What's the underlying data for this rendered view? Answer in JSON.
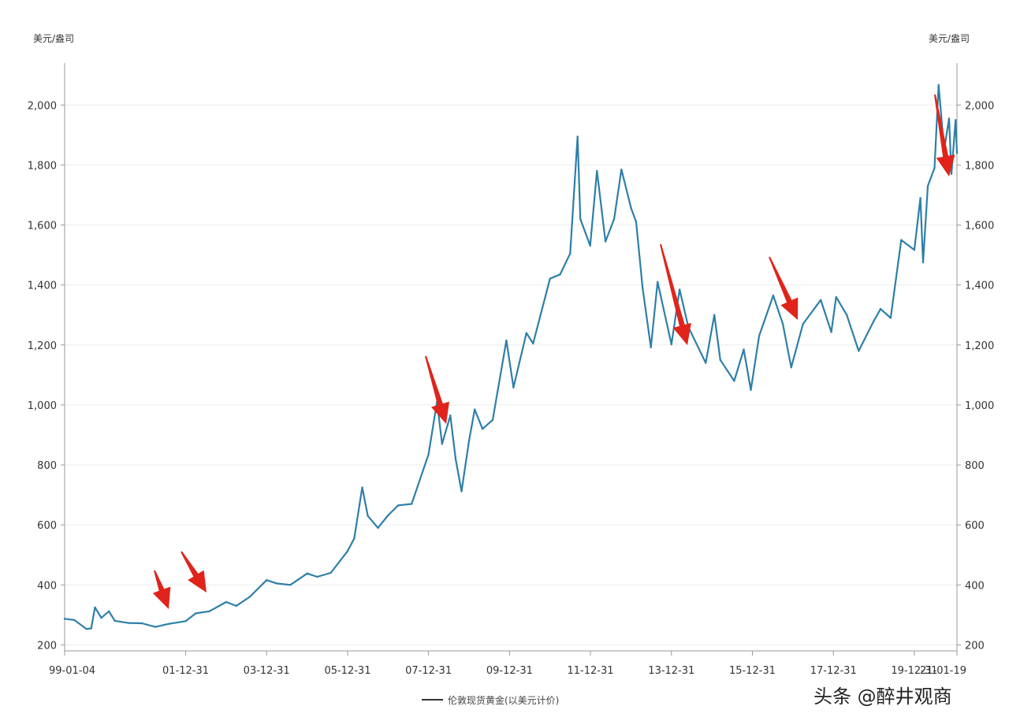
{
  "chart_data": {
    "type": "line",
    "y_unit_left": "美元/盎司",
    "y_unit_right": "美元/盎司",
    "ylim": [
      180,
      2140
    ],
    "y_ticks": [
      200,
      400,
      600,
      800,
      1000,
      1200,
      1400,
      1600,
      1800,
      2000
    ],
    "y_tick_labels": [
      "200",
      "400",
      "600",
      "800",
      "1,000",
      "1,200",
      "1,400",
      "1,600",
      "1,800",
      "2,000"
    ],
    "xlim": [
      "1999-01-04",
      "2021-01-19"
    ],
    "x_ticks": [
      "1999-01-04",
      "2001-12-31",
      "2003-12-31",
      "2005-12-31",
      "2007-12-31",
      "2009-12-31",
      "2011-12-31",
      "2013-12-31",
      "2015-12-31",
      "2017-12-31",
      "2019-12-31",
      "2021-01-19"
    ],
    "x_tick_labels": [
      "99-01-04",
      "01-12-31",
      "03-12-31",
      "05-12-31",
      "07-12-31",
      "09-12-31",
      "11-12-31",
      "13-12-31",
      "15-12-31",
      "17-12-31",
      "19-12-31",
      "21-01-19"
    ],
    "grid": "horizontal",
    "legend_position": "bottom",
    "series": [
      {
        "name": "伦敦现货黄金(以美元计价)",
        "color": "#2e7fa8",
        "x": [
          "1999-01-04",
          "1999-04-01",
          "1999-07-20",
          "1999-09-01",
          "1999-10-05",
          "1999-12-01",
          "2000-02-08",
          "2000-04-01",
          "2000-08-01",
          "2000-12-01",
          "2001-04-01",
          "2001-08-01",
          "2001-12-31",
          "2002-04-01",
          "2002-08-01",
          "2002-12-31",
          "2003-04-01",
          "2003-08-01",
          "2003-12-31",
          "2004-04-01",
          "2004-08-01",
          "2004-12-31",
          "2005-04-01",
          "2005-08-01",
          "2005-12-31",
          "2006-03-01",
          "2006-05-12",
          "2006-07-01",
          "2006-10-01",
          "2006-12-31",
          "2007-04-01",
          "2007-08-01",
          "2007-12-31",
          "2008-03-17",
          "2008-05-01",
          "2008-07-15",
          "2008-09-01",
          "2008-10-24",
          "2008-12-31",
          "2009-02-20",
          "2009-05-01",
          "2009-08-01",
          "2009-12-03",
          "2010-02-05",
          "2010-06-01",
          "2010-08-01",
          "2010-12-31",
          "2011-04-01",
          "2011-07-01",
          "2011-09-06",
          "2011-10-01",
          "2011-12-29",
          "2012-02-28",
          "2012-05-15",
          "2012-08-01",
          "2012-10-05",
          "2012-12-31",
          "2013-02-15",
          "2013-04-15",
          "2013-06-28",
          "2013-08-28",
          "2013-12-31",
          "2014-03-14",
          "2014-06-01",
          "2014-11-05",
          "2015-01-22",
          "2015-03-17",
          "2015-07-20",
          "2015-10-14",
          "2015-12-17",
          "2016-03-01",
          "2016-07-06",
          "2016-10-01",
          "2016-12-15",
          "2017-04-01",
          "2017-09-08",
          "2017-12-12",
          "2018-01-25",
          "2018-05-01",
          "2018-08-16",
          "2018-12-31",
          "2019-03-01",
          "2019-06-01",
          "2019-09-04",
          "2019-12-31",
          "2020-02-24",
          "2020-03-19",
          "2020-05-01",
          "2020-06-30",
          "2020-08-06",
          "2020-09-25",
          "2020-11-09",
          "2020-11-30",
          "2021-01-06",
          "2021-01-19"
        ],
        "values": [
          287,
          283,
          253,
          255,
          325,
          290,
          312,
          280,
          273,
          272,
          260,
          270,
          279,
          305,
          312,
          343,
          330,
          360,
          416,
          405,
          400,
          438,
          427,
          440,
          513,
          555,
          725,
          630,
          590,
          632,
          665,
          670,
          835,
          1011,
          870,
          965,
          820,
          712,
          882,
          985,
          920,
          950,
          1215,
          1058,
          1240,
          1205,
          1421,
          1435,
          1505,
          1895,
          1620,
          1531,
          1780,
          1545,
          1620,
          1785,
          1657,
          1610,
          1390,
          1192,
          1410,
          1202,
          1385,
          1260,
          1140,
          1300,
          1150,
          1080,
          1185,
          1050,
          1230,
          1365,
          1270,
          1125,
          1270,
          1350,
          1243,
          1360,
          1300,
          1180,
          1280,
          1320,
          1290,
          1550,
          1517,
          1690,
          1475,
          1730,
          1790,
          2067,
          1850,
          1955,
          1770,
          1950,
          1840
        ]
      }
    ]
  },
  "legend": {
    "label": "伦敦现货黄金(以美元计价)"
  },
  "watermark": {
    "text": "头条 @醉井观商"
  }
}
